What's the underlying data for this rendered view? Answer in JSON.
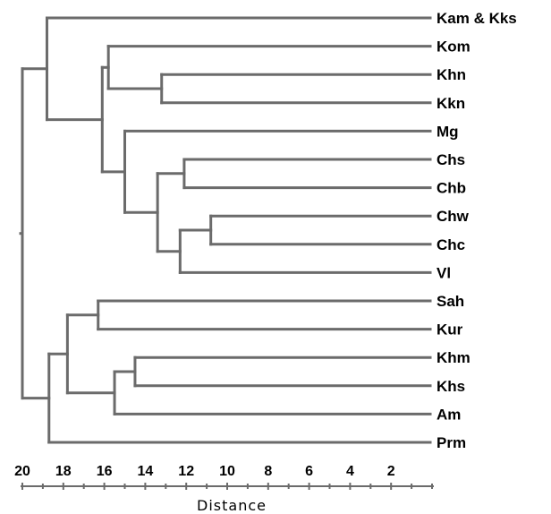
{
  "chart_data": {
    "type": "dendrogram",
    "xlabel": "Distance",
    "xlim": [
      20,
      0
    ],
    "ticks": [
      20,
      18,
      16,
      14,
      12,
      10,
      8,
      6,
      4,
      2
    ],
    "leaves": [
      "Kam & Kks",
      "Kom",
      "Khn",
      "Kkn",
      "Mg",
      "Chs",
      "Chb",
      "Chw",
      "Chc",
      "Vl",
      "Sah",
      "Kur",
      "Khm",
      "Khs",
      "Am",
      "Prm"
    ],
    "merges": [
      {
        "id": "n1",
        "children": [
          "Khn",
          "Kkn"
        ],
        "height": 13.2
      },
      {
        "id": "n2",
        "children": [
          "Chs",
          "Chb"
        ],
        "height": 12.1
      },
      {
        "id": "n3",
        "children": [
          "Chw",
          "Chc"
        ],
        "height": 10.8
      },
      {
        "id": "n4",
        "children": [
          "n3",
          "Vl"
        ],
        "height": 12.3
      },
      {
        "id": "n5",
        "children": [
          "n2",
          "n4"
        ],
        "height": 13.4
      },
      {
        "id": "n6",
        "children": [
          "Mg",
          "n5"
        ],
        "height": 15.0
      },
      {
        "id": "n7",
        "children": [
          "Kom",
          "n1"
        ],
        "height": 15.8
      },
      {
        "id": "n8",
        "children": [
          "n7",
          "n6"
        ],
        "height": 16.1
      },
      {
        "id": "n9",
        "children": [
          "Kam & Kks",
          "n8"
        ],
        "height": 18.8
      },
      {
        "id": "n10",
        "children": [
          "Khm",
          "Khs"
        ],
        "height": 14.5
      },
      {
        "id": "n11",
        "children": [
          "n10",
          "Am"
        ],
        "height": 15.5
      },
      {
        "id": "n12",
        "children": [
          "Sah",
          "Kur"
        ],
        "height": 16.3
      },
      {
        "id": "n13",
        "children": [
          "n12",
          "n11"
        ],
        "height": 17.8
      },
      {
        "id": "n14",
        "children": [
          "n13",
          "Prm"
        ],
        "height": 18.7
      },
      {
        "id": "n15",
        "children": [
          "n9",
          "n14"
        ],
        "height": 20.0
      }
    ]
  }
}
